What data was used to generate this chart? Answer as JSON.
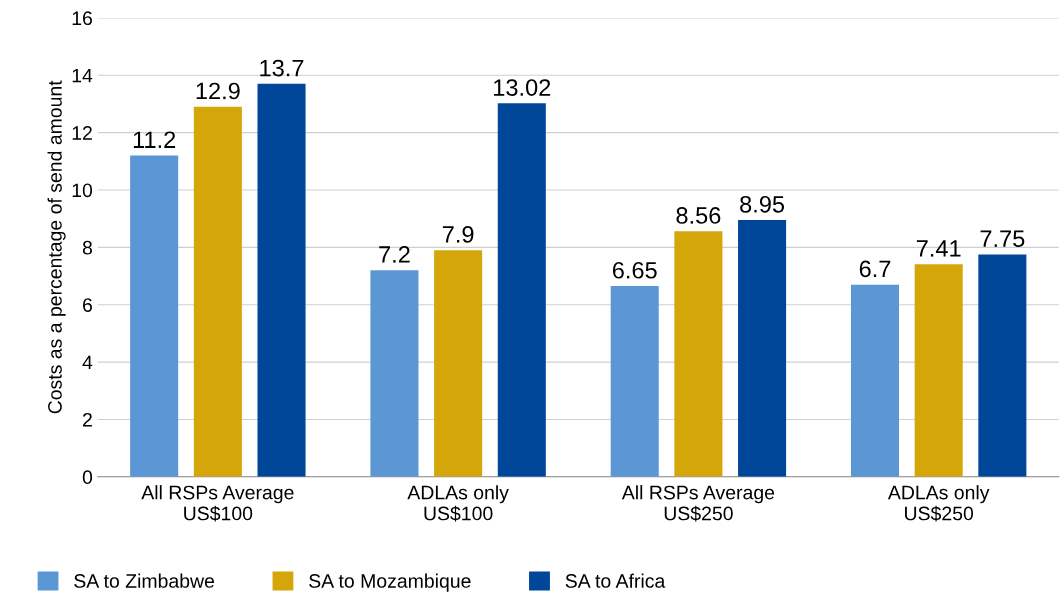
{
  "chart_data": {
    "type": "bar",
    "ylabel": "Costs as a percentage of send amount",
    "categories": [
      "All RSPs Average\nUS$100",
      "ADLAs only\nUS$100",
      "All RSPs Average\nUS$250",
      "ADLAs only\nUS$250"
    ],
    "series": [
      {
        "name": "SA to Zimbabwe",
        "color": "#5b97d5",
        "values": [
          11.2,
          7.2,
          6.65,
          6.7
        ]
      },
      {
        "name": "SA to Mozambique",
        "color": "#d4a60a",
        "values": [
          12.9,
          7.9,
          8.56,
          7.41
        ]
      },
      {
        "name": "SA to Africa",
        "color": "#00479a",
        "values": [
          13.7,
          13.02,
          8.95,
          7.75
        ]
      }
    ],
    "ylim": [
      0,
      16
    ],
    "yticks": [
      0,
      2,
      4,
      6,
      8,
      10,
      12,
      14,
      16
    ],
    "grid": "y",
    "legend": "bottom",
    "data_labels": true
  }
}
